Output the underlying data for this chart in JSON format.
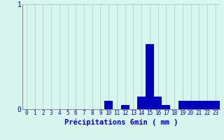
{
  "categories": [
    0,
    1,
    2,
    3,
    4,
    5,
    6,
    7,
    8,
    9,
    10,
    11,
    12,
    13,
    14,
    15,
    16,
    17,
    18,
    19,
    20,
    21,
    22,
    23
  ],
  "values": [
    0,
    0,
    0,
    0,
    0,
    0,
    0,
    0,
    0,
    0,
    0.08,
    0,
    0.04,
    0,
    0.12,
    0.62,
    0.12,
    0.04,
    0,
    0.08,
    0.08,
    0.08,
    0.08,
    0.08
  ],
  "bar_color": "#0000bb",
  "background_color": "#d8f5ee",
  "grid_color": "#aacfc4",
  "axis_color": "#888888",
  "text_color": "#0000cc",
  "xlabel": "Précipitations 6min ( mm )",
  "ylim": [
    0,
    1.0
  ],
  "yticks": [
    0,
    1
  ],
  "xlim": [
    -0.5,
    23.5
  ],
  "bar_width": 1.0,
  "xlabel_fontsize": 7.5,
  "tick_fontsize": 5.5,
  "ytick_fontsize": 7
}
